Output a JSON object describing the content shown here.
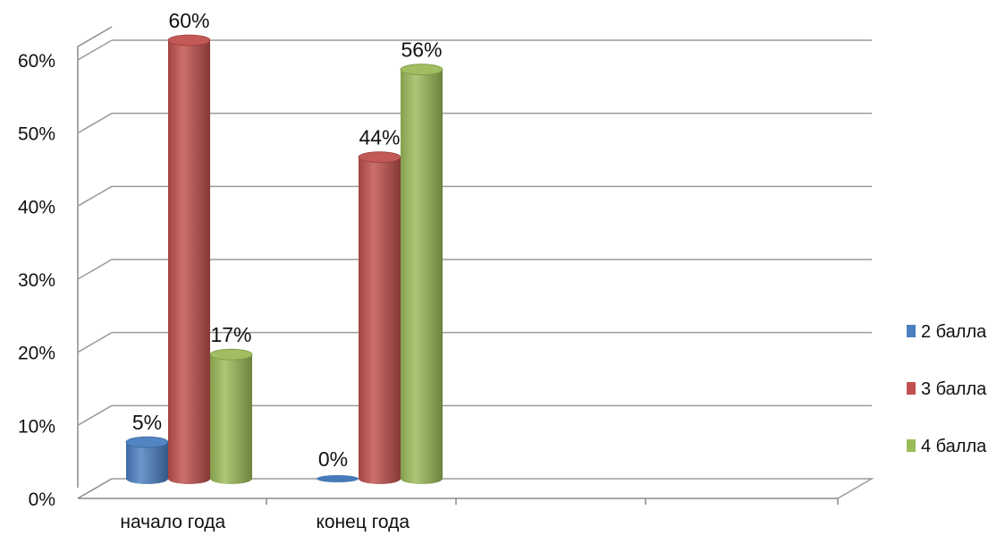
{
  "chart_data": {
    "type": "bar",
    "title": "",
    "xlabel": "",
    "ylabel": "",
    "categories": [
      "начало года",
      "конец года"
    ],
    "series": [
      {
        "name": "2 балла",
        "color": "#4a7fc1",
        "values": [
          5,
          0
        ],
        "labels": [
          "5%",
          "0%"
        ]
      },
      {
        "name": "3 балла",
        "color": "#c0504d",
        "values": [
          60,
          44
        ],
        "labels": [
          "60%",
          "44%"
        ]
      },
      {
        "name": "4 балла",
        "color": "#9bbb59",
        "values": [
          17,
          56
        ],
        "labels": [
          "17%",
          "56%"
        ]
      }
    ],
    "ylim": [
      0,
      60
    ],
    "yticks": [
      "0%",
      "10%",
      "20%",
      "30%",
      "40%",
      "50%",
      "60%"
    ],
    "grid": true,
    "legend_position": "right",
    "style": "3d-cylinder"
  }
}
